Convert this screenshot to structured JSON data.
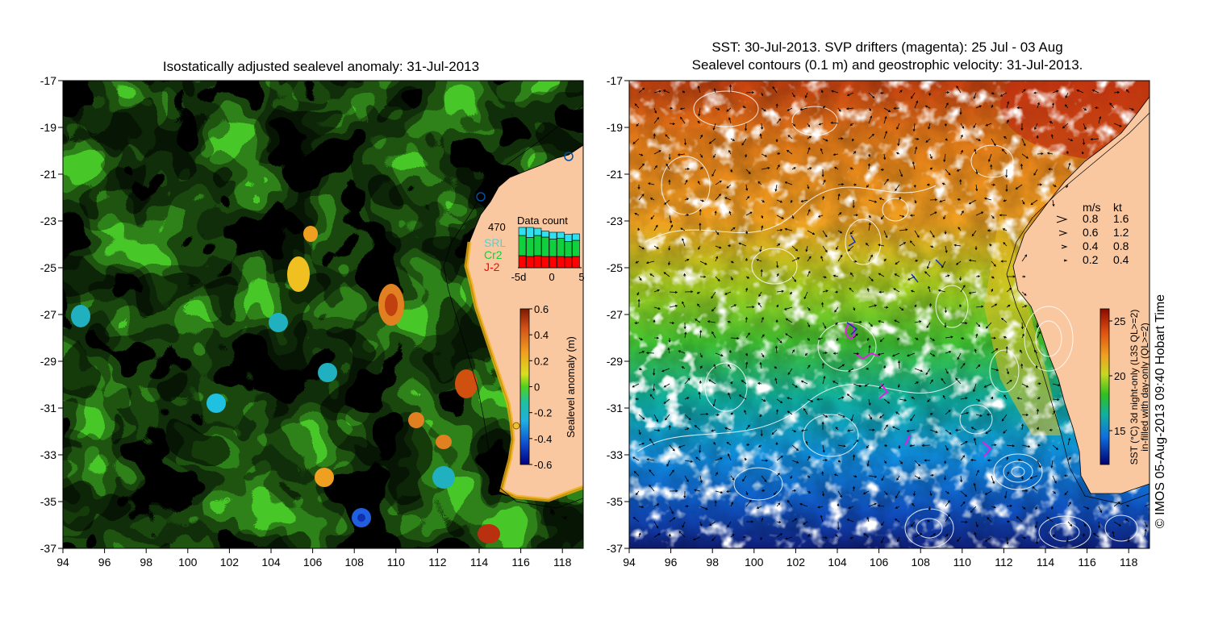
{
  "left": {
    "title": "Isostatically adjusted sealevel anomaly: 31-Jul-2013",
    "colorbar": {
      "label": "Sealevel anomaly (m)",
      "ticks": [
        "0.6",
        "0.4",
        "0.2",
        "0",
        "-0.2",
        "-0.4",
        "-0.6"
      ]
    },
    "data_count": {
      "title": "Data count",
      "max": "470",
      "legend": [
        {
          "label": "SRL",
          "color": "#2ee0f0"
        },
        {
          "label": "Cr2",
          "color": "#10d040"
        },
        {
          "label": "J-2",
          "color": "#ff0000"
        }
      ],
      "xticks": [
        "-5d",
        "0",
        "5"
      ],
      "bars": [
        {
          "srl": 0.2,
          "cr2": 0.5,
          "j2": 0.3
        },
        {
          "srl": 0.25,
          "cr2": 0.47,
          "j2": 0.28
        },
        {
          "srl": 0.18,
          "cr2": 0.5,
          "j2": 0.3
        },
        {
          "srl": 0.15,
          "cr2": 0.48,
          "j2": 0.28
        },
        {
          "srl": 0.17,
          "cr2": 0.43,
          "j2": 0.28
        },
        {
          "srl": 0.15,
          "cr2": 0.45,
          "j2": 0.28
        },
        {
          "srl": 0.18,
          "cr2": 0.38,
          "j2": 0.27
        },
        {
          "srl": 0.16,
          "cr2": 0.4,
          "j2": 0.28
        }
      ]
    }
  },
  "right": {
    "title_line1": "SST: 30-Jul-2013. SVP drifters (magenta): 25 Jul - 03 Aug",
    "title_line2": "Sealevel contours (0.1 m) and geostrophic velocity: 31-Jul-2013.",
    "colorbar": {
      "label_line1": "SST (°C) 3d night-only (L3S QL>=2)",
      "label_line2": "in-filled with day-only (QL>=2)",
      "ticks": [
        "25",
        "20",
        "15"
      ]
    },
    "velocity_legend": {
      "header_ms": "m/s",
      "header_kt": "kt",
      "rows": [
        {
          "ms": "0.8",
          "kt": "1.6"
        },
        {
          "ms": "0.6",
          "kt": "1.2"
        },
        {
          "ms": "0.4",
          "kt": "0.8"
        },
        {
          "ms": "0.2",
          "kt": "0.4"
        }
      ]
    }
  },
  "axes": {
    "lat_ticks": [
      "-17",
      "-19",
      "-21",
      "-23",
      "-25",
      "-27",
      "-29",
      "-31",
      "-33",
      "-35",
      "-37"
    ],
    "lon_ticks": [
      "94",
      "96",
      "98",
      "100",
      "102",
      "104",
      "106",
      "108",
      "110",
      "112",
      "114",
      "116",
      "118"
    ]
  },
  "credit": "© IMOS 05-Aug-2013 09:40 Hobart Time"
}
